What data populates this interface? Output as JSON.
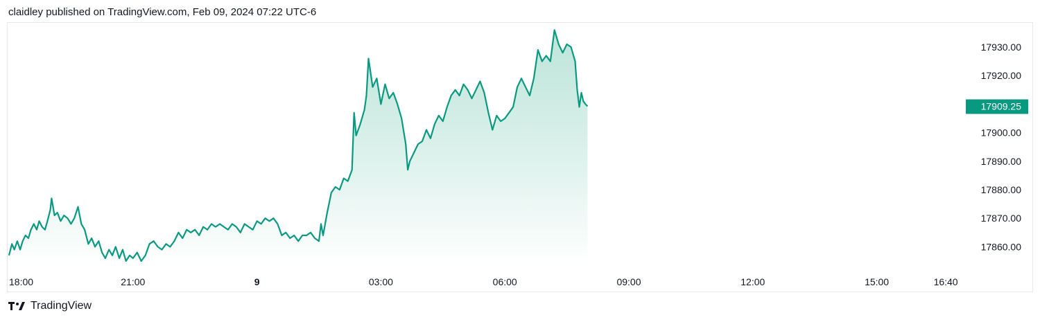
{
  "header": {
    "published_text": "claidley published on TradingView.com, Feb 09, 2024 07:22 UTC-6"
  },
  "footer": {
    "brand_label": "TradingView"
  },
  "colors": {
    "line": "#089981",
    "area_top": "#a7dccd",
    "area_bottom": "#ffffff",
    "price_tag_bg": "#089981"
  },
  "chart_data": {
    "type": "area",
    "title": "",
    "xlabel": "",
    "ylabel": "",
    "ylim": [
      17853.5,
      17938.0
    ],
    "x_ticks": [
      {
        "label": "18:00",
        "hours": 0,
        "bold": false
      },
      {
        "label": "21:00",
        "hours": 3,
        "bold": false
      },
      {
        "label": "9",
        "hours": 6,
        "bold": true
      },
      {
        "label": "03:00",
        "hours": 9,
        "bold": false
      },
      {
        "label": "06:00",
        "hours": 12,
        "bold": false
      },
      {
        "label": "09:00",
        "hours": 15,
        "bold": false
      },
      {
        "label": "12:00",
        "hours": 18,
        "bold": false
      },
      {
        "label": "15:00",
        "hours": 21,
        "bold": false
      },
      {
        "label": "16:40",
        "hours": 22.67,
        "bold": false
      }
    ],
    "y_ticks": [
      "17930.00",
      "17920.00",
      "17910.00",
      "17900.00",
      "17890.00",
      "17880.00",
      "17870.00",
      "17860.00"
    ],
    "last_price_label": "17909.25",
    "last_price": 17909.25,
    "series": [
      {
        "values": [
          [
            0.0,
            17857.0
          ],
          [
            0.07,
            17861.0
          ],
          [
            0.13,
            17859.0
          ],
          [
            0.2,
            17862.0
          ],
          [
            0.27,
            17859.0
          ],
          [
            0.33,
            17862.0
          ],
          [
            0.4,
            17864.0
          ],
          [
            0.47,
            17863.0
          ],
          [
            0.53,
            17866.0
          ],
          [
            0.6,
            17868.0
          ],
          [
            0.67,
            17866.0
          ],
          [
            0.73,
            17869.0
          ],
          [
            0.8,
            17867.0
          ],
          [
            0.87,
            17866.0
          ],
          [
            0.93,
            17869.0
          ],
          [
            1.0,
            17873.0
          ],
          [
            1.03,
            17877.0
          ],
          [
            1.1,
            17871.0
          ],
          [
            1.17,
            17872.0
          ],
          [
            1.25,
            17869.0
          ],
          [
            1.33,
            17871.0
          ],
          [
            1.42,
            17870.0
          ],
          [
            1.5,
            17868.0
          ],
          [
            1.58,
            17870.0
          ],
          [
            1.67,
            17874.0
          ],
          [
            1.75,
            17868.0
          ],
          [
            1.83,
            17866.0
          ],
          [
            1.92,
            17861.0
          ],
          [
            2.0,
            17863.0
          ],
          [
            2.08,
            17860.0
          ],
          [
            2.17,
            17862.0
          ],
          [
            2.25,
            17858.0
          ],
          [
            2.33,
            17856.0
          ],
          [
            2.42,
            17859.0
          ],
          [
            2.5,
            17857.0
          ],
          [
            2.58,
            17860.0
          ],
          [
            2.67,
            17856.0
          ],
          [
            2.75,
            17859.0
          ],
          [
            2.83,
            17855.0
          ],
          [
            2.92,
            17857.0
          ],
          [
            3.0,
            17856.0
          ],
          [
            3.1,
            17858.0
          ],
          [
            3.2,
            17855.0
          ],
          [
            3.3,
            17857.0
          ],
          [
            3.4,
            17861.0
          ],
          [
            3.5,
            17862.0
          ],
          [
            3.6,
            17860.0
          ],
          [
            3.7,
            17859.0
          ],
          [
            3.8,
            17861.0
          ],
          [
            3.9,
            17860.0
          ],
          [
            4.0,
            17862.0
          ],
          [
            4.1,
            17865.0
          ],
          [
            4.2,
            17863.0
          ],
          [
            4.3,
            17866.0
          ],
          [
            4.4,
            17865.0
          ],
          [
            4.5,
            17866.0
          ],
          [
            4.6,
            17864.0
          ],
          [
            4.7,
            17867.0
          ],
          [
            4.8,
            17866.0
          ],
          [
            4.9,
            17868.0
          ],
          [
            5.0,
            17867.0
          ],
          [
            5.1,
            17868.0
          ],
          [
            5.2,
            17867.0
          ],
          [
            5.3,
            17866.0
          ],
          [
            5.4,
            17868.0
          ],
          [
            5.5,
            17867.0
          ],
          [
            5.6,
            17865.0
          ],
          [
            5.7,
            17868.0
          ],
          [
            5.8,
            17867.0
          ],
          [
            5.9,
            17866.0
          ],
          [
            6.0,
            17869.0
          ],
          [
            6.1,
            17868.0
          ],
          [
            6.2,
            17870.0
          ],
          [
            6.3,
            17869.0
          ],
          [
            6.4,
            17870.0
          ],
          [
            6.5,
            17868.0
          ],
          [
            6.6,
            17864.0
          ],
          [
            6.7,
            17865.0
          ],
          [
            6.8,
            17863.0
          ],
          [
            6.9,
            17864.0
          ],
          [
            7.0,
            17862.0
          ],
          [
            7.1,
            17864.0
          ],
          [
            7.2,
            17864.0
          ],
          [
            7.3,
            17865.0
          ],
          [
            7.4,
            17863.0
          ],
          [
            7.5,
            17862.0
          ],
          [
            7.55,
            17868.0
          ],
          [
            7.6,
            17864.0
          ],
          [
            7.7,
            17872.0
          ],
          [
            7.8,
            17879.0
          ],
          [
            7.9,
            17881.0
          ],
          [
            8.0,
            17880.0
          ],
          [
            8.1,
            17884.0
          ],
          [
            8.2,
            17883.0
          ],
          [
            8.3,
            17887.0
          ],
          [
            8.35,
            17907.0
          ],
          [
            8.4,
            17899.0
          ],
          [
            8.5,
            17903.0
          ],
          [
            8.6,
            17908.0
          ],
          [
            8.65,
            17913.0
          ],
          [
            8.7,
            17926.0
          ],
          [
            8.8,
            17916.0
          ],
          [
            8.9,
            17919.0
          ],
          [
            9.0,
            17910.0
          ],
          [
            9.1,
            17917.0
          ],
          [
            9.2,
            17912.0
          ],
          [
            9.3,
            17914.0
          ],
          [
            9.4,
            17910.0
          ],
          [
            9.5,
            17905.0
          ],
          [
            9.6,
            17896.0
          ],
          [
            9.65,
            17887.0
          ],
          [
            9.7,
            17890.0
          ],
          [
            9.8,
            17893.0
          ],
          [
            9.9,
            17896.0
          ],
          [
            10.0,
            17897.0
          ],
          [
            10.1,
            17901.0
          ],
          [
            10.2,
            17898.0
          ],
          [
            10.3,
            17903.0
          ],
          [
            10.4,
            17906.0
          ],
          [
            10.5,
            17904.0
          ],
          [
            10.6,
            17909.0
          ],
          [
            10.7,
            17913.0
          ],
          [
            10.8,
            17915.0
          ],
          [
            10.9,
            17913.0
          ],
          [
            11.0,
            17917.0
          ],
          [
            11.1,
            17915.0
          ],
          [
            11.2,
            17912.0
          ],
          [
            11.3,
            17915.0
          ],
          [
            11.4,
            17918.0
          ],
          [
            11.5,
            17914.0
          ],
          [
            11.6,
            17907.0
          ],
          [
            11.7,
            17901.0
          ],
          [
            11.8,
            17906.0
          ],
          [
            11.9,
            17904.0
          ],
          [
            12.0,
            17905.0
          ],
          [
            12.1,
            17907.0
          ],
          [
            12.2,
            17909.0
          ],
          [
            12.3,
            17916.0
          ],
          [
            12.4,
            17919.0
          ],
          [
            12.5,
            17916.0
          ],
          [
            12.6,
            17913.0
          ],
          [
            12.7,
            17919.0
          ],
          [
            12.8,
            17929.0
          ],
          [
            12.9,
            17925.0
          ],
          [
            13.0,
            17927.0
          ],
          [
            13.1,
            17925.0
          ],
          [
            13.2,
            17936.0
          ],
          [
            13.3,
            17931.0
          ],
          [
            13.4,
            17928.0
          ],
          [
            13.5,
            17931.0
          ],
          [
            13.6,
            17930.0
          ],
          [
            13.7,
            17925.0
          ],
          [
            13.75,
            17915.0
          ],
          [
            13.8,
            17909.0
          ],
          [
            13.85,
            17914.0
          ],
          [
            13.9,
            17911.0
          ],
          [
            13.95,
            17910.0
          ],
          [
            14.0,
            17909.25
          ]
        ]
      }
    ]
  }
}
